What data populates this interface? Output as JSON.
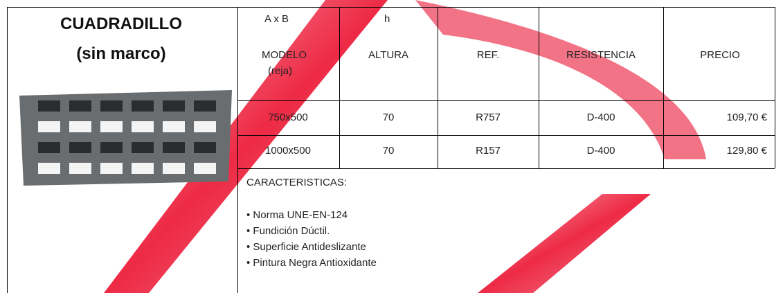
{
  "title": {
    "line1": "CUADRADILLO",
    "line2": "(sin marco)"
  },
  "table": {
    "dimension_row": [
      "A x B",
      "h"
    ],
    "header": [
      "MODELO",
      "ALTURA",
      "REF.",
      "RESISTENCIA",
      "PRECIO"
    ],
    "header_note": "(reja)",
    "rows": [
      [
        "750x500",
        "70",
        "R757",
        "D-400",
        "109,70 €"
      ],
      [
        "1000x500",
        "70",
        "R157",
        "D-400",
        "129,80 €"
      ]
    ]
  },
  "characteristics": {
    "heading": "CARACTERISTICAS:",
    "items": [
      "• Norma UNE-EN-124",
      "• Fundición Dúctil.",
      "• Superficie Antideslizante",
      "• Pintura Negra Antioxidante"
    ]
  }
}
